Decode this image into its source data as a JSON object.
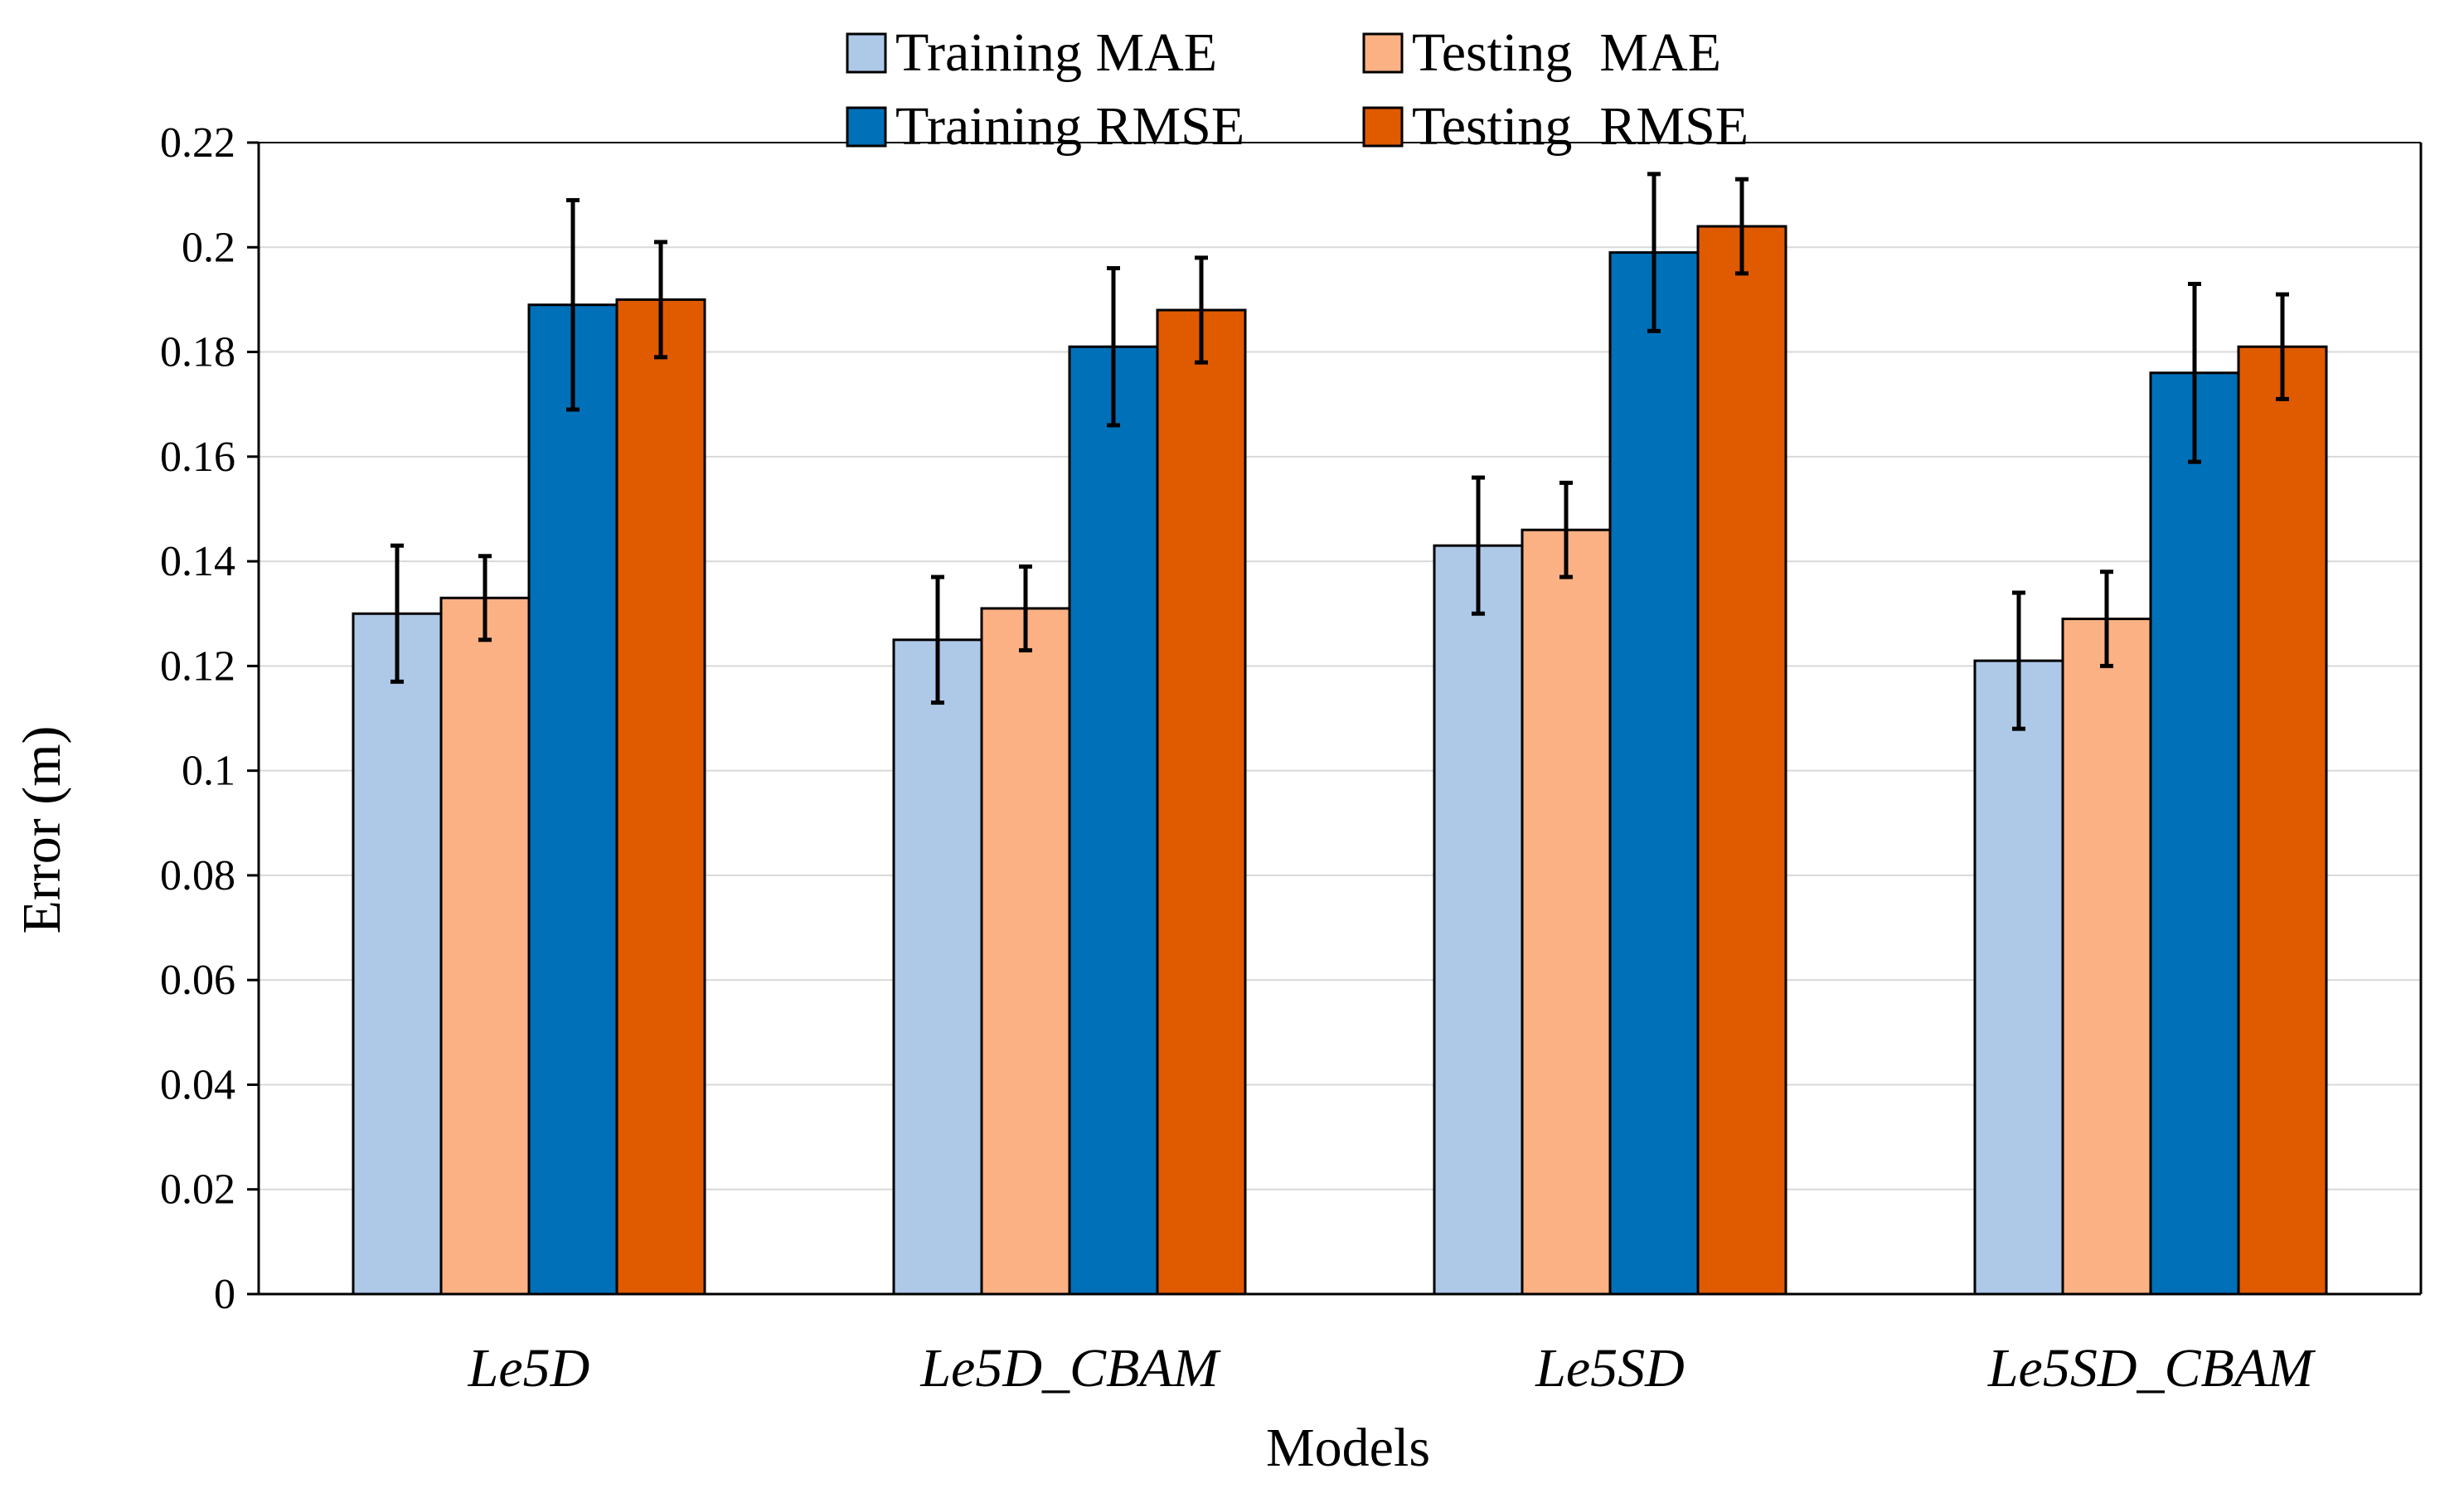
{
  "chart_data": {
    "type": "bar",
    "title": "",
    "xlabel": "Models",
    "ylabel": "Error (m)",
    "ylim": [
      0,
      0.22
    ],
    "yticks": [
      0,
      0.02,
      0.04,
      0.06,
      0.08,
      0.1,
      0.12,
      0.14,
      0.16,
      0.18,
      0.2,
      0.22
    ],
    "ytick_labels": [
      "0",
      "0.02",
      "0.04",
      "0.06",
      "0.08",
      "0.1",
      "0.12",
      "0.14",
      "0.16",
      "0.18",
      "0.2",
      "0.22"
    ],
    "grid": true,
    "legend_position": "top-center",
    "categories": [
      "Le5D",
      "Le5D_CBAM",
      "Le5SD",
      "Le5SD_CBAM"
    ],
    "series": [
      {
        "name": "Training MAE",
        "color": "#aec8e8",
        "values": [
          0.13,
          0.125,
          0.143,
          0.121
        ],
        "errors": [
          0.013,
          0.012,
          0.013,
          0.013
        ]
      },
      {
        "name": "Testing  MAE",
        "color": "#fcb184",
        "values": [
          0.133,
          0.131,
          0.146,
          0.129
        ],
        "errors": [
          0.008,
          0.008,
          0.009,
          0.009
        ]
      },
      {
        "name": "Training RMSE",
        "color": "#0070b8",
        "values": [
          0.189,
          0.181,
          0.199,
          0.176
        ],
        "errors": [
          0.02,
          0.015,
          0.015,
          0.017
        ]
      },
      {
        "name": "Testing  RMSE",
        "color": "#e05a00",
        "values": [
          0.19,
          0.188,
          0.204,
          0.181
        ],
        "errors": [
          0.011,
          0.01,
          0.009,
          0.01
        ]
      }
    ]
  }
}
